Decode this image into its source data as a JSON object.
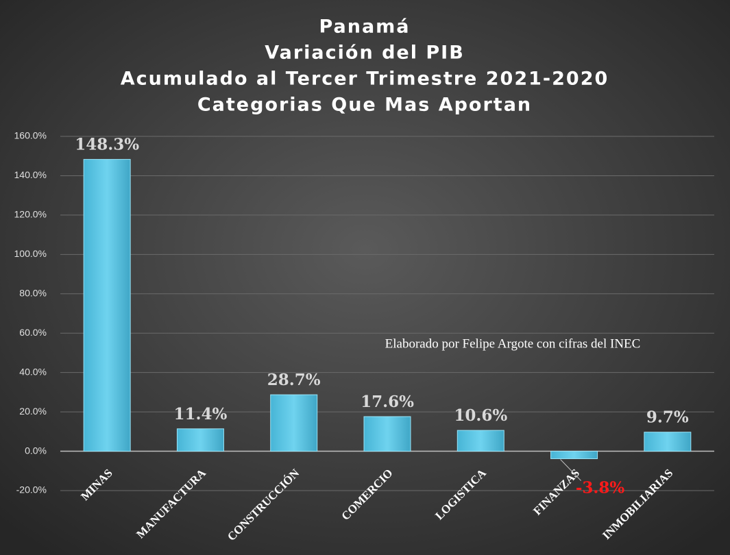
{
  "chart_data": {
    "type": "bar",
    "title": [
      "Panamá",
      "Variación del PIB",
      "Acumulado al Tercer Trimestre 2021-2020",
      "Categorias Que Mas Aportan"
    ],
    "annotation": "Elaborado por Felipe Argote con cifras del INEC",
    "categories": [
      "MINAS",
      "MANUFACTURA",
      "CONSTRUCCIÓN",
      "COMERCIO",
      "LOGISTICA",
      "FINANZAS",
      "INMOBILIARIAS"
    ],
    "values": [
      148.3,
      11.4,
      28.7,
      17.6,
      10.6,
      -3.8,
      9.7
    ],
    "value_labels": [
      "148.3%",
      "11.4%",
      "28.7%",
      "17.6%",
      "10.6%",
      "-3.8%",
      "9.7%"
    ],
    "color": "#5cc8e6",
    "label_color": "#d9d9d9",
    "negative_label_color": "#ff1a1a",
    "ylim": [
      -20,
      160
    ],
    "yticks": [
      {
        "value": -20,
        "label": "-20.0%"
      },
      {
        "value": 0,
        "label": "0.0%"
      },
      {
        "value": 20,
        "label": "20.0%"
      },
      {
        "value": 40,
        "label": "40.0%"
      },
      {
        "value": 60,
        "label": "60.0%"
      },
      {
        "value": 80,
        "label": "80.0%"
      },
      {
        "value": 100,
        "label": "100.0%"
      },
      {
        "value": 120,
        "label": "120.0%"
      },
      {
        "value": 140,
        "label": "140.0%"
      },
      {
        "value": 160,
        "label": "160.0%"
      }
    ],
    "grid": true
  }
}
